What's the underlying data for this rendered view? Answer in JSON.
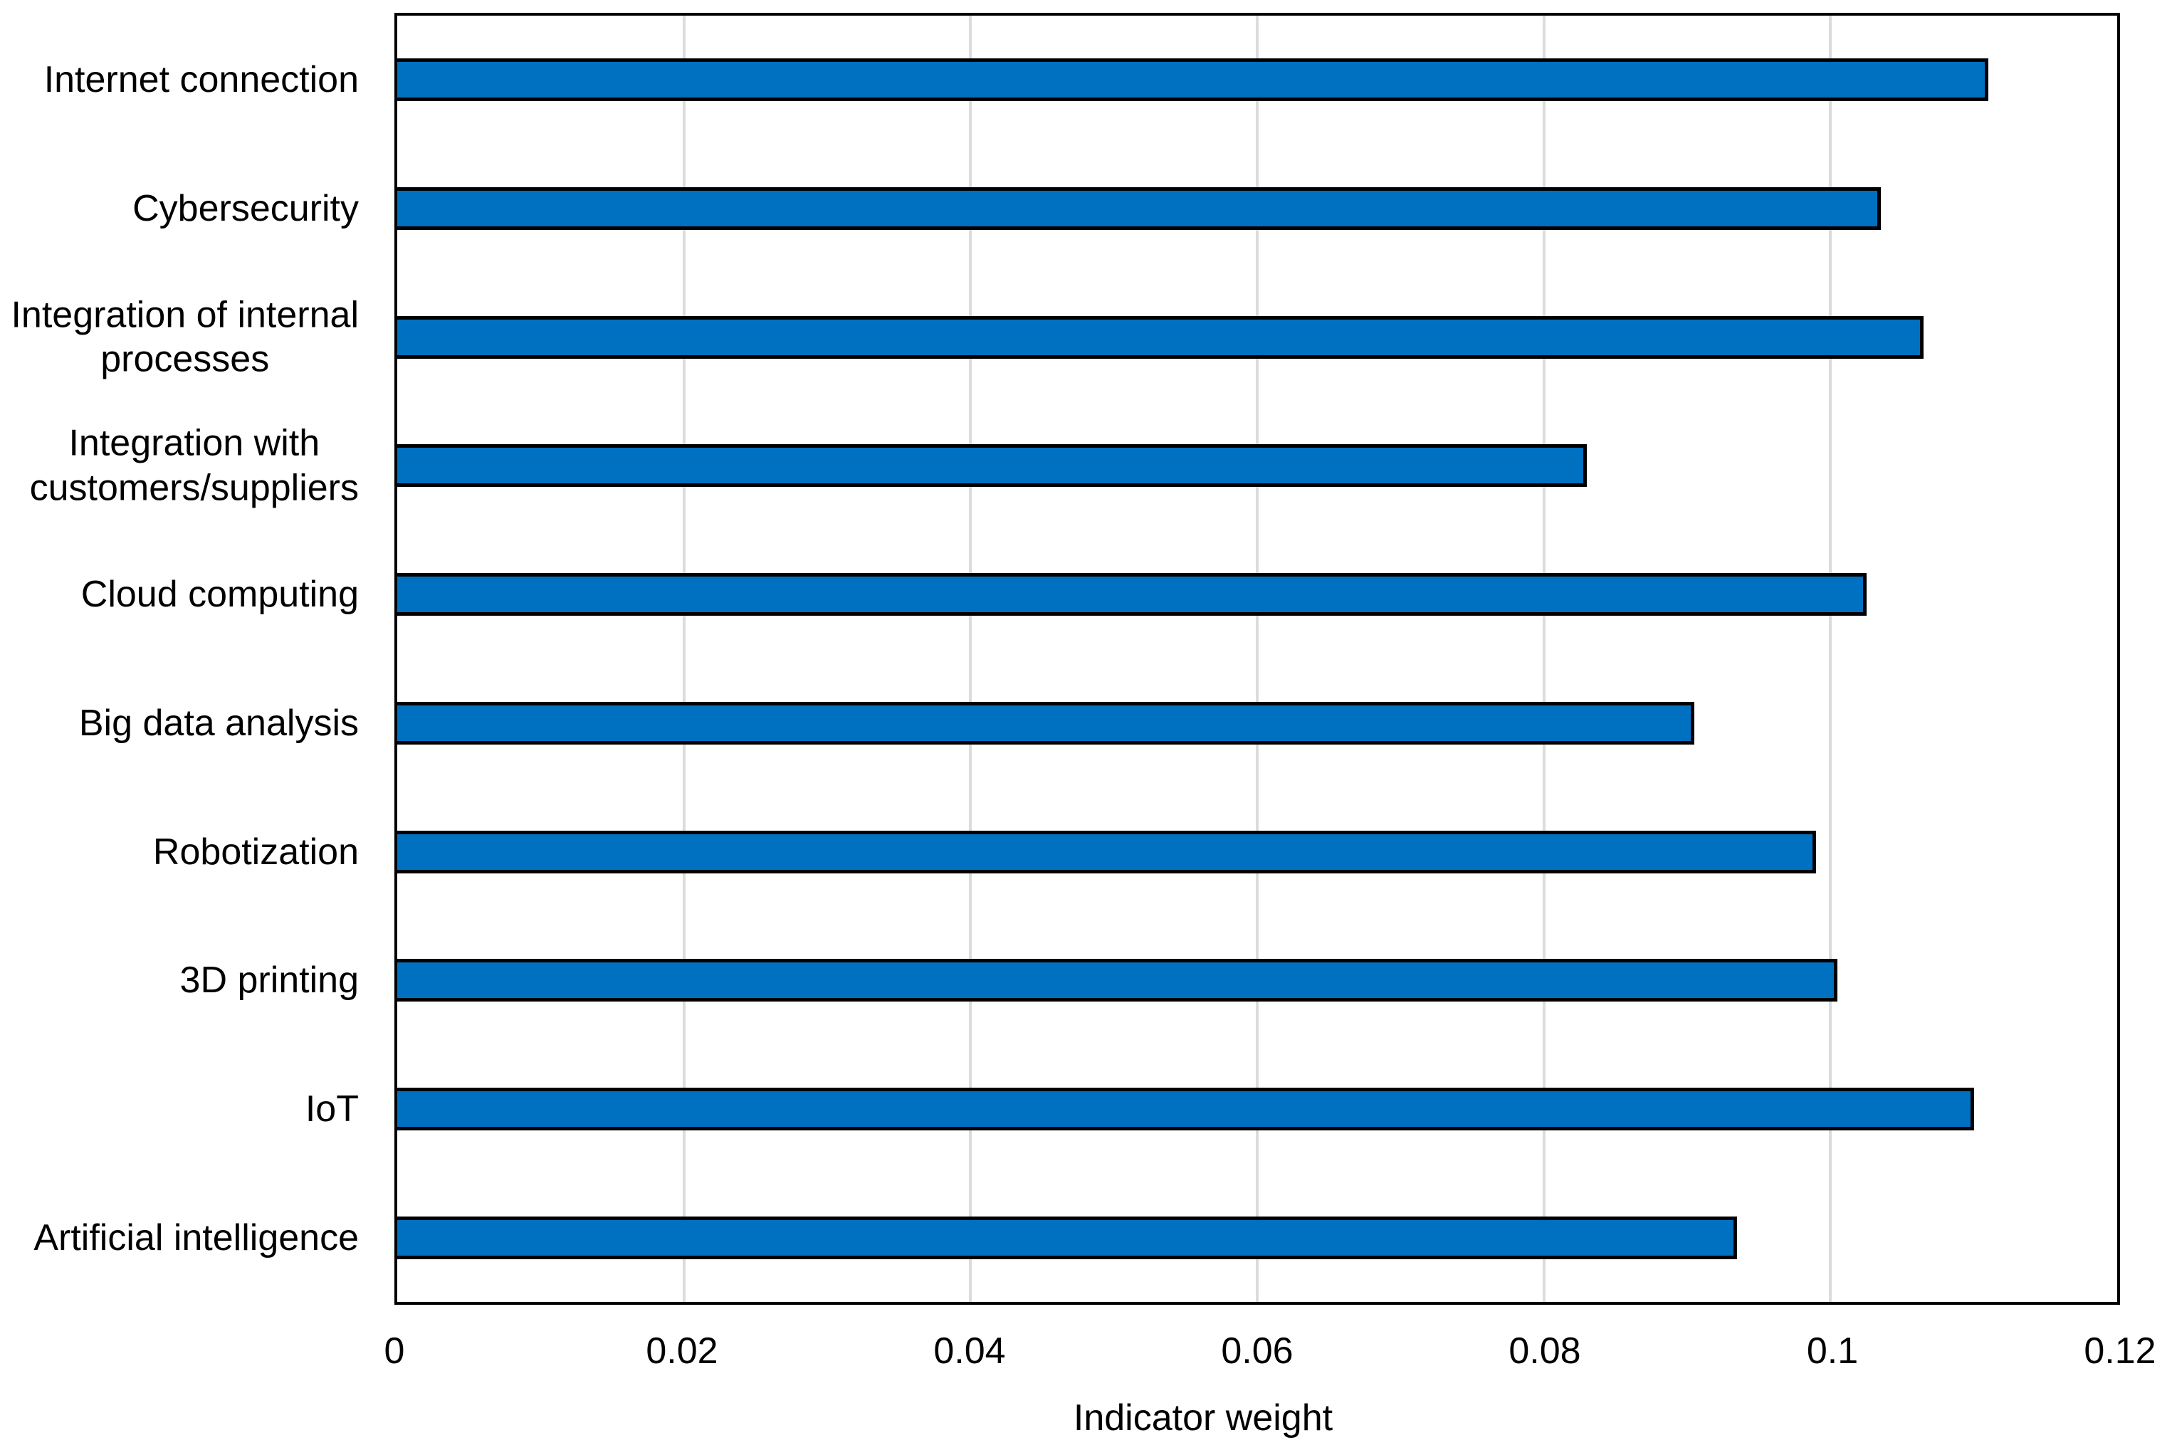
{
  "figure": {
    "background": "#ffffff"
  },
  "chart_data": {
    "type": "bar",
    "orientation": "horizontal",
    "title": "",
    "categories": [
      "Internet connection",
      "Cybersecurity",
      "Integration of internal\nprocesses",
      "Integration with\ncustomers/suppliers",
      "Cloud computing",
      "Big data analysis",
      "Robotization",
      "3D printing",
      "IoT",
      "Artificial intelligence"
    ],
    "values": [
      0.111,
      0.1035,
      0.1065,
      0.083,
      0.1025,
      0.0905,
      0.099,
      0.1005,
      0.11,
      0.0935
    ],
    "xlabel": "Indicator weight",
    "ylabel": "",
    "xlim": [
      0,
      0.12
    ],
    "xticks": [
      0,
      0.02,
      0.04,
      0.06,
      0.08,
      0.1,
      0.12
    ],
    "xtick_labels": [
      "0",
      "0.02",
      "0.04",
      "0.06",
      "0.08",
      "0.1",
      "0.12"
    ],
    "grid": "vertical-gridlines-at-xticks",
    "legend": "none",
    "colors": {
      "bar_fill": "#0070C0",
      "bar_border": "#000000",
      "gridline": "#DCDCDC",
      "plot_border": "#000000",
      "text": "#000000"
    }
  }
}
